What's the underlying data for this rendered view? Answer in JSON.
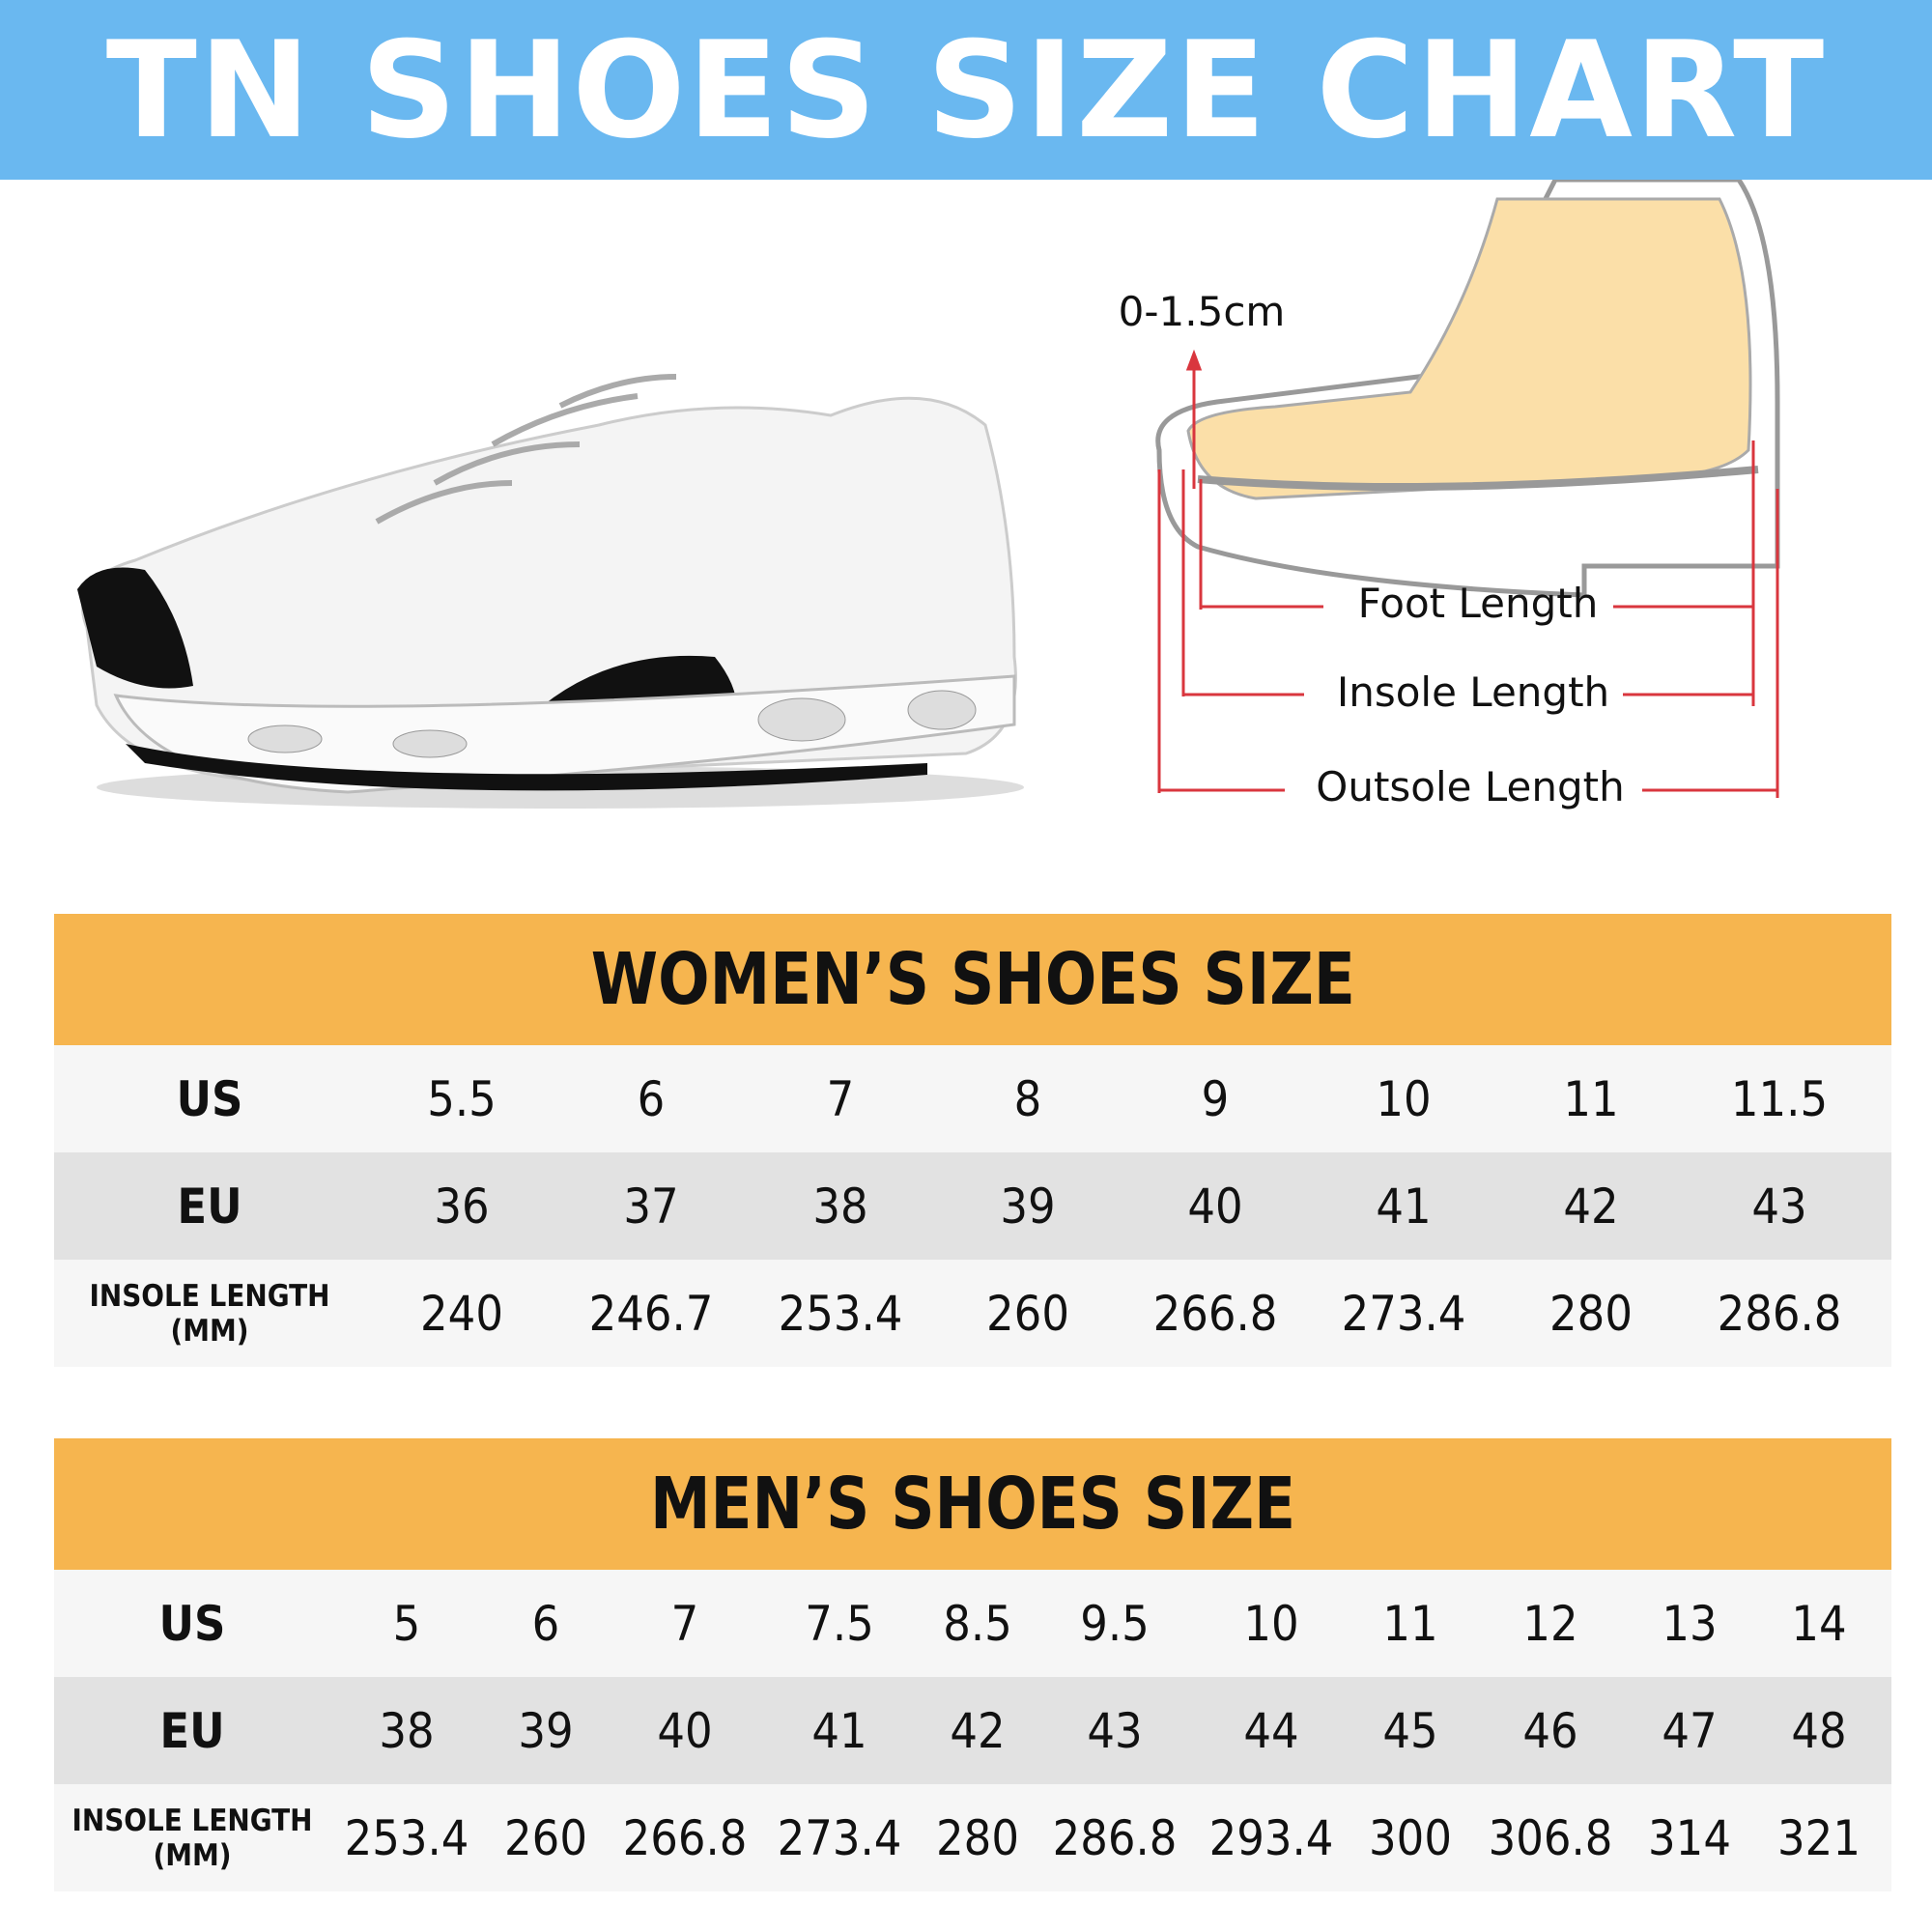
{
  "title": "TN SHOES SIZE CHART",
  "colors": {
    "banner": "#6ab8f0",
    "table_header": "#f6b54f",
    "row_light": "#f6f6f6",
    "row_gray": "#e2e2e2",
    "measure_lines": "#d9363e",
    "foot": "#fbdfa8"
  },
  "diagram": {
    "toe_gap": "0-1.5cm",
    "foot_length": "Foot Length",
    "insole_length": "Insole Length",
    "outsole_length": "Outsole Length"
  },
  "women": {
    "heading": "WOMEN’S SHOES SIZE",
    "rows": [
      {
        "label": "US",
        "values": [
          "5.5",
          "6",
          "7",
          "8",
          "9",
          "10",
          "11",
          "11.5"
        ]
      },
      {
        "label": "EU",
        "values": [
          "36",
          "37",
          "38",
          "39",
          "40",
          "41",
          "42",
          "43"
        ]
      },
      {
        "label": "INSOLE LENGTH",
        "label2": "(MM)",
        "values": [
          "240",
          "246.7",
          "253.4",
          "260",
          "266.8",
          "273.4",
          "280",
          "286.8"
        ]
      }
    ]
  },
  "men": {
    "heading": "MEN’S SHOES SIZE",
    "rows": [
      {
        "label": "US",
        "values": [
          "5",
          "6",
          "7",
          "7.5",
          "8.5",
          "9.5",
          "10",
          "11",
          "12",
          "13",
          "14"
        ]
      },
      {
        "label": "EU",
        "values": [
          "38",
          "39",
          "40",
          "41",
          "42",
          "43",
          "44",
          "45",
          "46",
          "47",
          "48"
        ]
      },
      {
        "label": "INSOLE LENGTH",
        "label2": "(MM)",
        "values": [
          "253.4",
          "260",
          "266.8",
          "273.4",
          "280",
          "286.8",
          "293.4",
          "300",
          "306.8",
          "314",
          "321"
        ]
      }
    ]
  }
}
